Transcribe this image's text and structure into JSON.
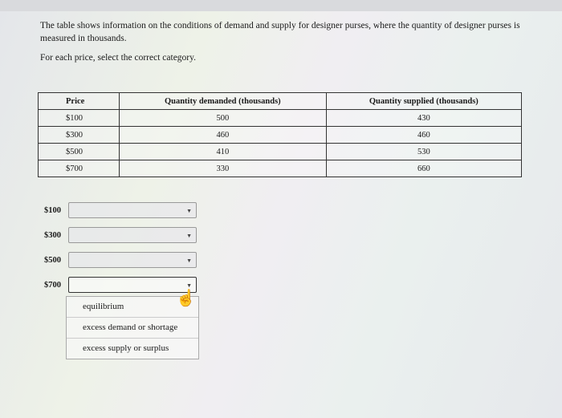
{
  "intro": {
    "line1": "The table shows information on the conditions of demand and supply for designer purses, where the quantity of designer purses is measured in thousands.",
    "line2": "For each price, select the correct category."
  },
  "table": {
    "headers": [
      "Price",
      "Quantity demanded (thousands)",
      "Quantity supplied (thousands)"
    ],
    "rows": [
      [
        "$100",
        "500",
        "430"
      ],
      [
        "$300",
        "460",
        "460"
      ],
      [
        "$500",
        "410",
        "530"
      ],
      [
        "$700",
        "330",
        "660"
      ]
    ]
  },
  "selects": [
    {
      "label": "$100",
      "value": ""
    },
    {
      "label": "$300",
      "value": ""
    },
    {
      "label": "$500",
      "value": ""
    },
    {
      "label": "$700",
      "value": "",
      "open": true
    }
  ],
  "dropdown_options": [
    "equilibrium",
    "excess demand or shortage",
    "excess supply or surplus"
  ],
  "icons": {
    "caret": "chevron-down-icon",
    "cursor": "hand-pointer-icon"
  }
}
